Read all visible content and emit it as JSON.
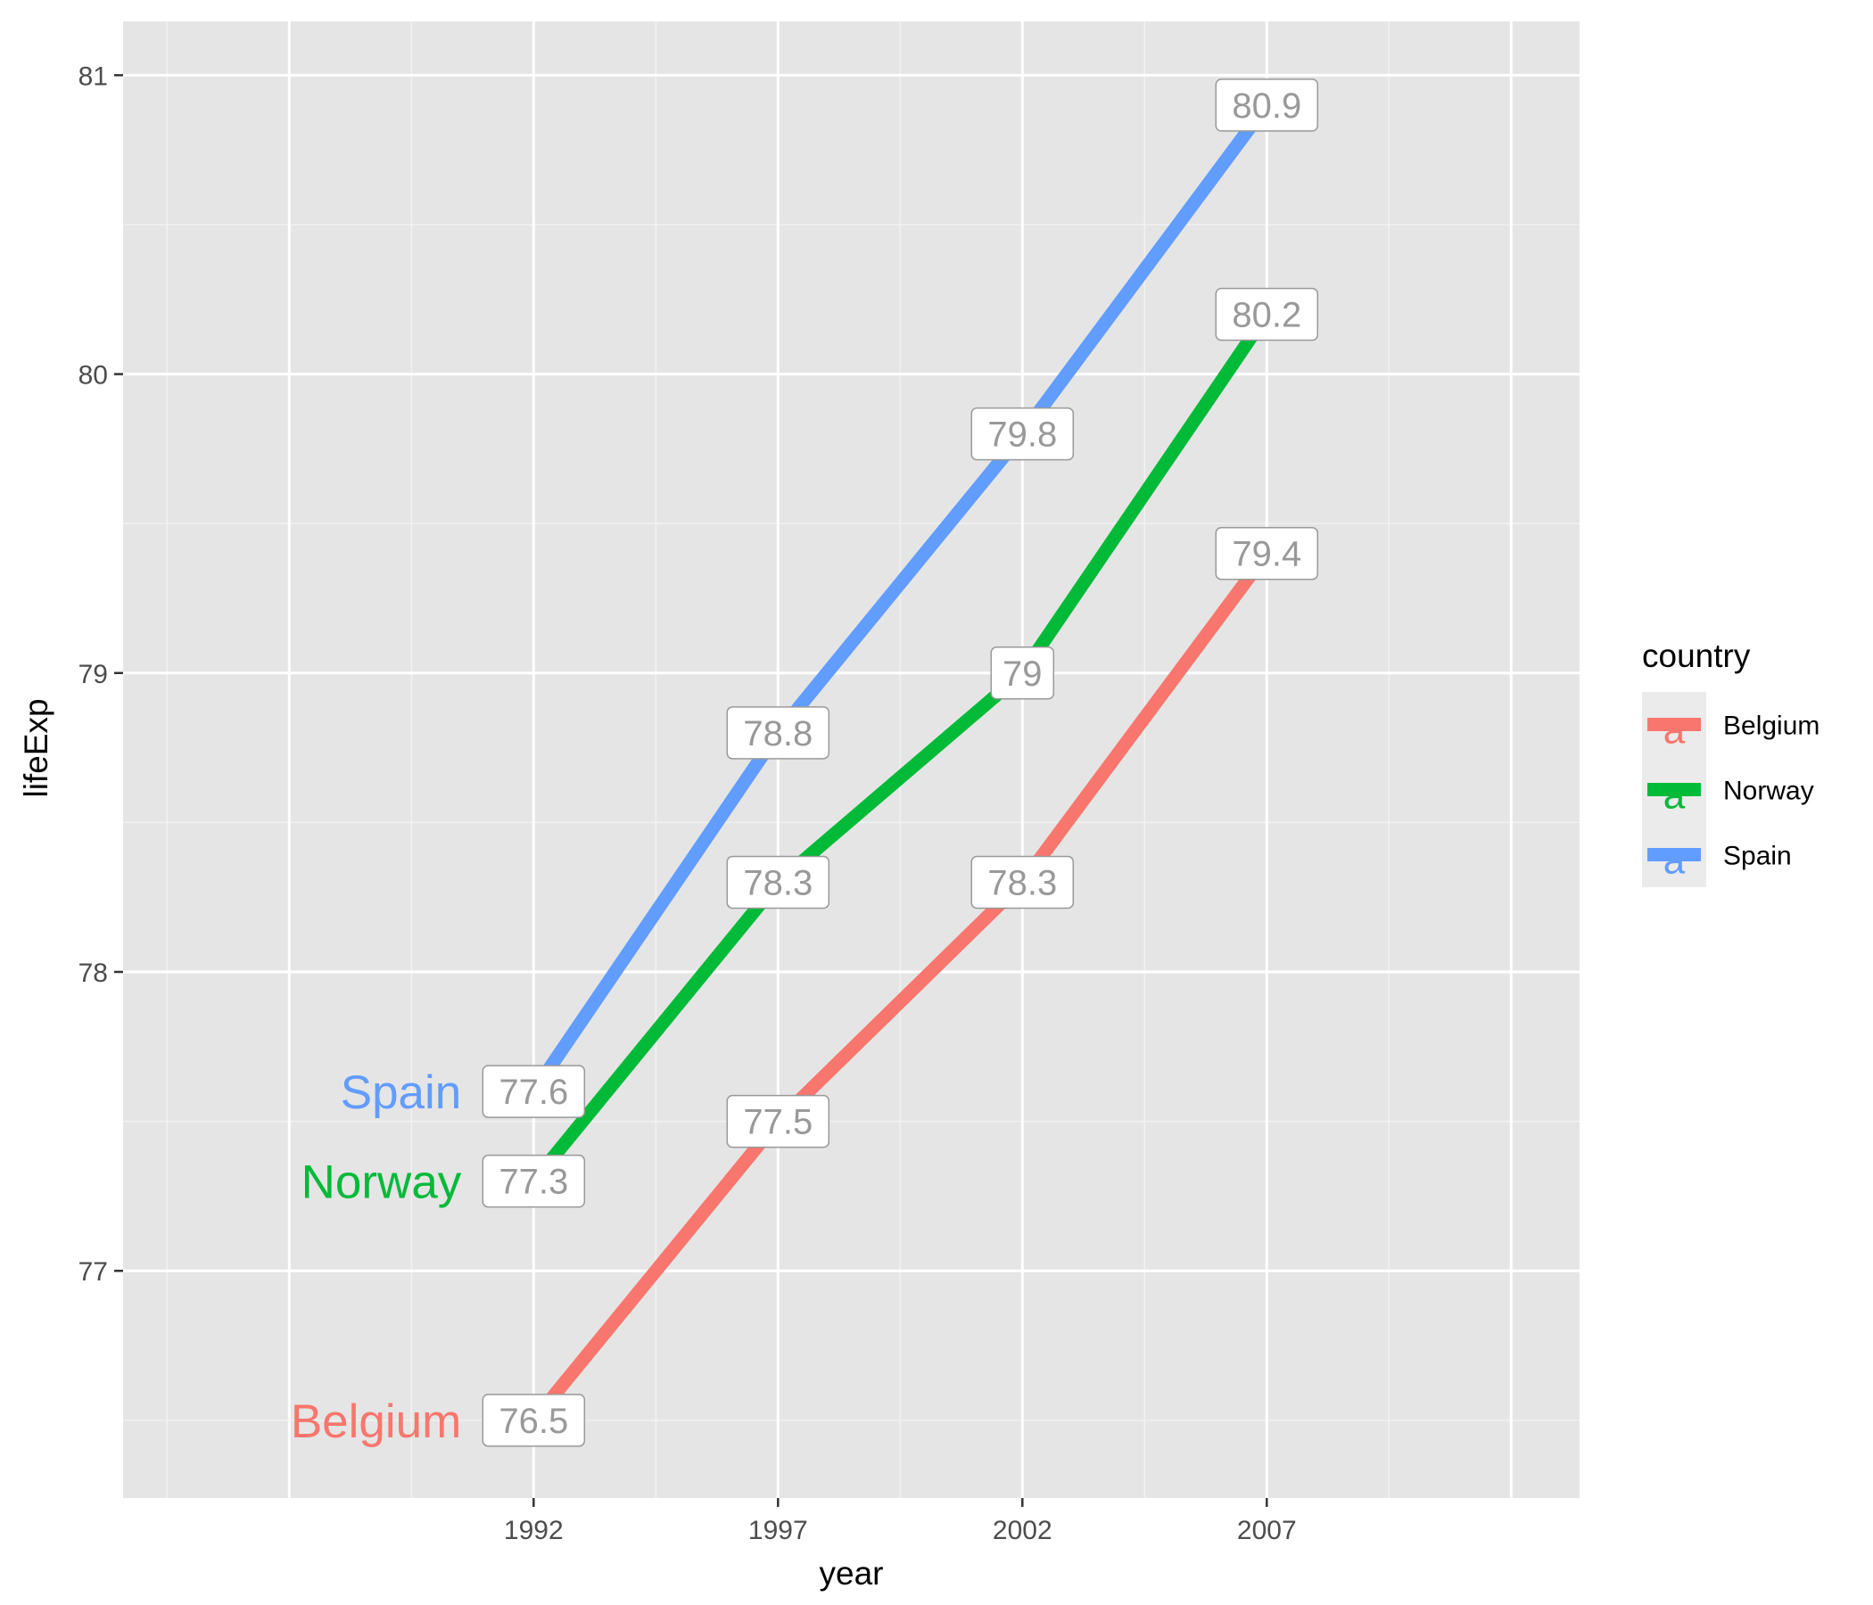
{
  "chart_data": {
    "type": "line",
    "title": "",
    "xlabel": "year",
    "ylabel": "lifeExp",
    "x": [
      1992,
      1997,
      2002,
      2007
    ],
    "x_ticks": [
      "1992",
      "1997",
      "2002",
      "2007"
    ],
    "y_ticks": [
      "77",
      "78",
      "79",
      "80",
      "81"
    ],
    "xlim": [
      1983.6,
      2013.4
    ],
    "ylim": [
      76.24,
      81.18
    ],
    "grid": true,
    "legend": {
      "title": "country",
      "placement": "right",
      "key_glyph": "a"
    },
    "series": [
      {
        "name": "Belgium",
        "color": "#F8766D",
        "values": [
          76.5,
          77.5,
          78.3,
          79.4
        ],
        "labels": [
          "76.5",
          "77.5",
          "78.3",
          "79.4"
        ]
      },
      {
        "name": "Norway",
        "color": "#00BA38",
        "values": [
          77.3,
          78.3,
          79.0,
          80.2
        ],
        "labels": [
          "77.3",
          "78.3",
          "79",
          "80.2"
        ]
      },
      {
        "name": "Spain",
        "color": "#619CFF",
        "values": [
          77.6,
          78.8,
          79.8,
          80.9
        ],
        "labels": [
          "77.6",
          "78.8",
          "79.8",
          "80.9"
        ]
      }
    ]
  }
}
